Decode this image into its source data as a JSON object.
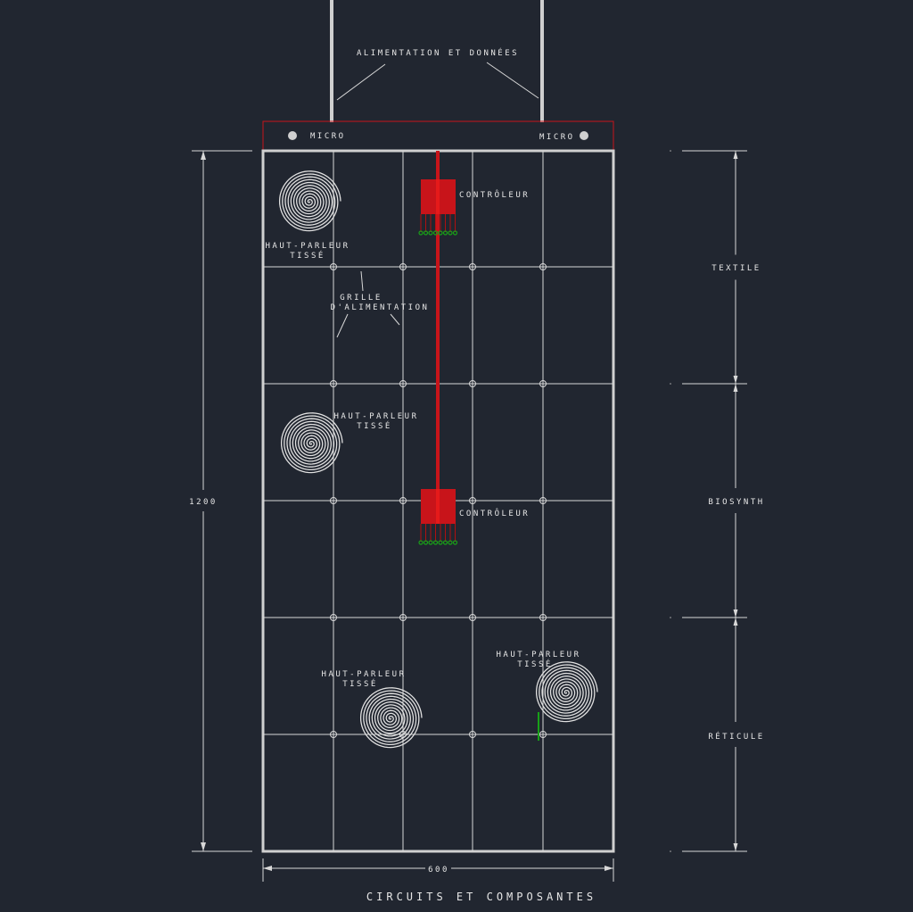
{
  "colors": {
    "background": "#212630",
    "lines": "#d8d8d8",
    "controller": "#c8141a",
    "pins": "#18a018"
  },
  "labels": {
    "top_cable": "ALIMENTATION ET DONNÉES",
    "micro_left": "MICRO",
    "micro_right": "MICRO",
    "controller_1": "CONTRÔLEUR",
    "controller_2": "CONTRÔLEUR",
    "speaker_1": [
      "HAUT-PARLEUR",
      "TISSÉ"
    ],
    "speaker_2": [
      "HAUT-PARLEUR",
      "TISSÉ"
    ],
    "speaker_3": [
      "HAUT-PARLEUR",
      "TISSÉ"
    ],
    "speaker_4": [
      "HAUT-PARLEUR",
      "TISSÉ"
    ],
    "grid": [
      "GRILLE",
      "D'ALIMENTATION"
    ],
    "title": "CIRCUITS ET COMPOSANTES"
  },
  "dimensions": {
    "height": "1200",
    "width": "600"
  },
  "layers": [
    "TEXTILE",
    "BIOSYNTH",
    "RÉTICULE"
  ]
}
